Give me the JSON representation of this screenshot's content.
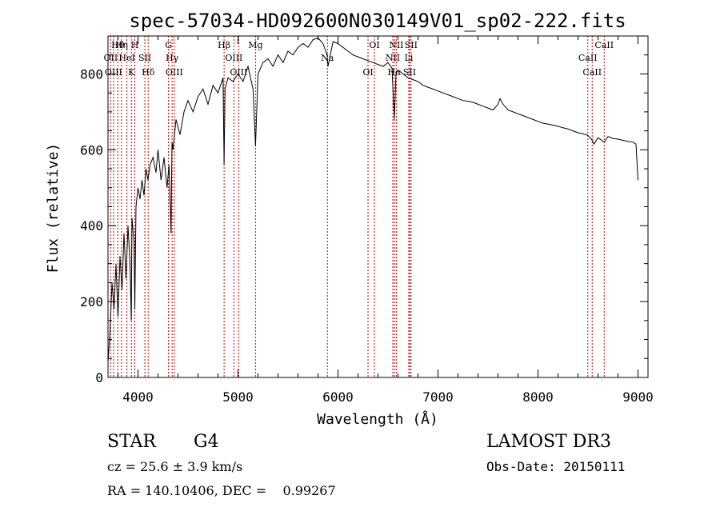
{
  "chart_data": {
    "type": "line",
    "title": "spec-57034-HD092600N030149V01_sp02-222.fits",
    "xlabel": "Wavelength (Å)",
    "ylabel": "Flux (relative)",
    "xlim": [
      3700,
      9100
    ],
    "ylim": [
      0,
      900
    ],
    "xticks": [
      4000,
      5000,
      6000,
      7000,
      8000,
      9000
    ],
    "yticks": [
      0,
      200,
      400,
      600,
      800
    ],
    "grid": false,
    "series": [
      {
        "name": "flux",
        "x": [
          3700,
          3720,
          3740,
          3760,
          3780,
          3800,
          3820,
          3840,
          3860,
          3880,
          3900,
          3920,
          3933,
          3940,
          3960,
          3968,
          3980,
          4000,
          4020,
          4040,
          4060,
          4080,
          4100,
          4120,
          4150,
          4180,
          4200,
          4230,
          4260,
          4290,
          4310,
          4330,
          4340,
          4350,
          4380,
          4420,
          4460,
          4500,
          4550,
          4600,
          4650,
          4700,
          4750,
          4800,
          4850,
          4861,
          4870,
          4900,
          4950,
          5000,
          5050,
          5100,
          5150,
          5175,
          5200,
          5250,
          5300,
          5350,
          5400,
          5450,
          5500,
          5550,
          5600,
          5650,
          5700,
          5750,
          5800,
          5850,
          5890,
          5900,
          5950,
          6000,
          6050,
          6100,
          6150,
          6200,
          6250,
          6300,
          6350,
          6400,
          6450,
          6500,
          6540,
          6563,
          6580,
          6600,
          6650,
          6700,
          6750,
          6800,
          6850,
          6900,
          6950,
          7000,
          7050,
          7100,
          7150,
          7200,
          7250,
          7300,
          7350,
          7400,
          7450,
          7500,
          7550,
          7600,
          7620,
          7650,
          7700,
          7750,
          7800,
          7850,
          7900,
          7950,
          8000,
          8050,
          8100,
          8150,
          8200,
          8250,
          8300,
          8350,
          8400,
          8450,
          8500,
          8542,
          8560,
          8600,
          8662,
          8700,
          8750,
          8800,
          8850,
          8900,
          8950,
          8980,
          9000
        ],
        "y": [
          40,
          120,
          250,
          180,
          300,
          160,
          320,
          230,
          380,
          260,
          400,
          300,
          150,
          420,
          360,
          180,
          450,
          500,
          470,
          520,
          480,
          550,
          520,
          560,
          580,
          540,
          600,
          520,
          580,
          500,
          560,
          380,
          620,
          600,
          680,
          640,
          700,
          730,
          700,
          740,
          760,
          720,
          770,
          750,
          790,
          560,
          760,
          790,
          780,
          800,
          780,
          820,
          760,
          610,
          800,
          830,
          840,
          820,
          850,
          830,
          860,
          850,
          870,
          880,
          870,
          890,
          895,
          880,
          850,
          820,
          885,
          880,
          870,
          860,
          850,
          845,
          840,
          835,
          830,
          825,
          820,
          830,
          815,
          680,
          800,
          810,
          800,
          790,
          785,
          780,
          770,
          765,
          760,
          755,
          750,
          745,
          740,
          735,
          730,
          728,
          725,
          720,
          715,
          710,
          705,
          720,
          735,
          720,
          705,
          700,
          695,
          690,
          685,
          680,
          675,
          670,
          668,
          665,
          662,
          658,
          655,
          650,
          645,
          642,
          638,
          625,
          615,
          632,
          620,
          635,
          630,
          628,
          625,
          622,
          620,
          615,
          520
        ]
      }
    ],
    "lines": [
      {
        "name": "Hθ",
        "wavelength": 3798
      },
      {
        "name": "OII",
        "wavelength": 3727
      },
      {
        "name": "OIII",
        "wavelength": 3755
      },
      {
        "name": "Hη",
        "wavelength": 3835
      },
      {
        "name": "HeI",
        "wavelength": 3889
      },
      {
        "name": "K",
        "wavelength": 3934
      },
      {
        "name": "H",
        "wavelength": 3968
      },
      {
        "name": "SII",
        "wavelength": 4069
      },
      {
        "name": "Hδ",
        "wavelength": 4102
      },
      {
        "name": "G",
        "wavelength": 4305
      },
      {
        "name": "Hγ",
        "wavelength": 4341
      },
      {
        "name": "OIII",
        "wavelength": 4363
      },
      {
        "name": "Hβ",
        "wavelength": 4861
      },
      {
        "name": "OIII",
        "wavelength": 4959
      },
      {
        "name": "OIII",
        "wavelength": 5007
      },
      {
        "name": "Mg",
        "wavelength": 5175
      },
      {
        "name": "Na",
        "wavelength": 5894
      },
      {
        "name": "OI",
        "wavelength": 6300
      },
      {
        "name": "OI",
        "wavelength": 6364
      },
      {
        "name": "NII",
        "wavelength": 6548
      },
      {
        "name": "Hα",
        "wavelength": 6563
      },
      {
        "name": "NII",
        "wavelength": 6583
      },
      {
        "name": "Li",
        "wavelength": 6708
      },
      {
        "name": "SII",
        "wavelength": 6716
      },
      {
        "name": "SII",
        "wavelength": 6731
      },
      {
        "name": "CaII",
        "wavelength": 8498
      },
      {
        "name": "CaII",
        "wavelength": 8542
      },
      {
        "name": "CaII",
        "wavelength": 8662
      }
    ]
  },
  "info": {
    "class": "STAR",
    "subclass": "G4",
    "survey": "LAMOST DR3",
    "cz": "cz = 25.6 ± 3.9 km/s",
    "obs_date": "Obs-Date: 20150111",
    "coords": "RA = 140.10406, DEC =    0.99267"
  },
  "colors": {
    "line": "#000000",
    "marker": "#cc0000",
    "background": "#ffffff"
  }
}
